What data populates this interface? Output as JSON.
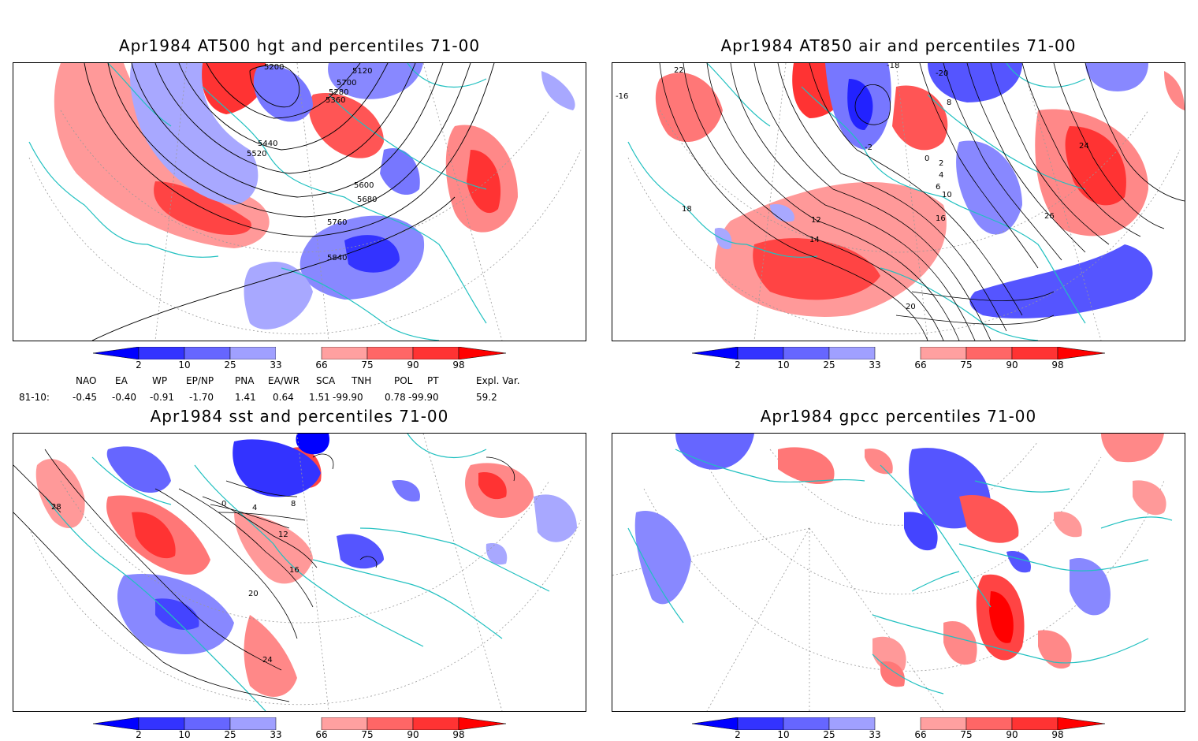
{
  "panels": [
    {
      "id": "hgt500",
      "title": "Apr1984 AT500 hgt and percentiles 71-00",
      "contour_labels": [
        "5120",
        "5200",
        "5280",
        "5360",
        "5440",
        "5520",
        "5600",
        "5680",
        "5700",
        "5760",
        "5840"
      ]
    },
    {
      "id": "air850",
      "title": "Apr1984 AT850 air and percentiles 71-00",
      "contour_labels": [
        "-20",
        "-18",
        "-16",
        "-2",
        "0",
        "2",
        "4",
        "6",
        "8",
        "10",
        "12",
        "14",
        "16",
        "18",
        "20",
        "22",
        "24",
        "26"
      ]
    },
    {
      "id": "sst",
      "title": "Apr1984 sst and percentiles 71-00",
      "contour_labels": [
        "0",
        "4",
        "8",
        "12",
        "16",
        "20",
        "24",
        "28"
      ]
    },
    {
      "id": "gpcc",
      "title": "Apr1984 gpcc percentiles 71-00",
      "contour_labels": []
    }
  ],
  "colorbar": {
    "labels": [
      "2",
      "10",
      "25",
      "33",
      "66",
      "75",
      "90",
      "98"
    ],
    "colors": [
      "#0000ff",
      "#3333ff",
      "#6666ff",
      "#a0a0ff",
      "#ffffff",
      "#ffa0a0",
      "#ff6666",
      "#ff3333",
      "#ff0000"
    ]
  },
  "indices": {
    "headers": [
      "NAO",
      "EA",
      "WP",
      "EP/NP",
      "PNA",
      "EA/WR",
      "SCA",
      "TNH",
      "POL",
      "PT",
      "Expl. Var."
    ],
    "row_label": "81-10:",
    "values": [
      "-0.45",
      "-0.40",
      "-0.91",
      "-1.70",
      "1.41",
      "0.64",
      "1.51",
      "-99.90",
      "0.78",
      "-99.90",
      "59.2"
    ]
  },
  "colors": {
    "coast": "#20c0c0",
    "grid": "#999999",
    "contour": "#000000"
  }
}
